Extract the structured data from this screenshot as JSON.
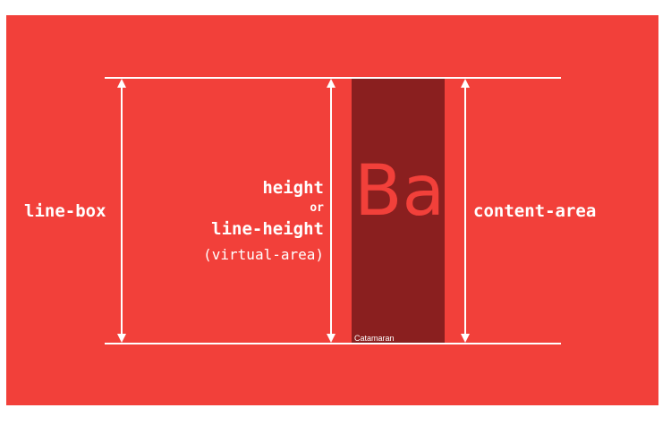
{
  "diagram": {
    "colors": {
      "background": "#f2403a",
      "content_area": "#8a1f1f",
      "lines": "#ffffff",
      "glyph": "#f2403a"
    },
    "labels": {
      "line_box": "line-box",
      "height": "height",
      "or": "or",
      "line_height": "line-height",
      "virtual_area": "(virtual-area)",
      "content_area": "content-area"
    },
    "sample_glyphs": "Ba",
    "font_name": "Catamaran"
  }
}
